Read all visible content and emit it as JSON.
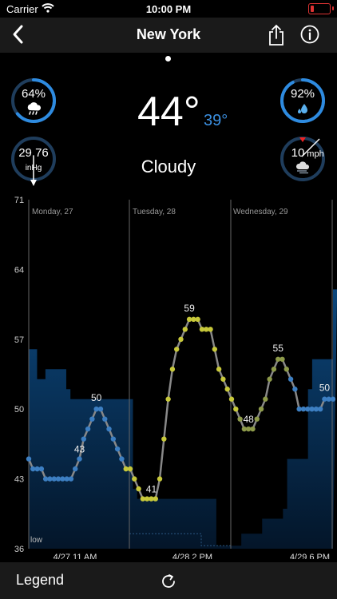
{
  "status_bar": {
    "carrier": "Carrier",
    "time": "10:00 PM"
  },
  "nav": {
    "title": "New York"
  },
  "current": {
    "temperature": "44°",
    "feels_like": "39°",
    "condition": "Cloudy",
    "precip_chance": "64%",
    "humidity": "92%",
    "pressure": "29.76",
    "pressure_unit": "inHg",
    "wind_speed": "10",
    "wind_unit": "mph"
  },
  "colors": {
    "accent": "#2e8be0",
    "ring_track": "#1f3d5c",
    "temp_line": "#888888"
  },
  "footer": {
    "legend_label": "Legend",
    "refresh_icon": "refresh-icon"
  },
  "chart_data": {
    "type": "line",
    "y_ticks": [
      "71",
      "64",
      "57",
      "50",
      "43",
      "36"
    ],
    "ylim": [
      36,
      71
    ],
    "day_labels": [
      "Monday, 27",
      "Tuesday, 28",
      "Wednesday, 29"
    ],
    "time_labels": [
      "4/27 11 AM",
      "4/28 2 PM",
      "4/29 6 PM"
    ],
    "low_label": "low",
    "point_labels": [
      "43",
      "50",
      "41",
      "59",
      "48",
      "55",
      "50"
    ],
    "series": [
      {
        "values": [
          45,
          44,
          44,
          44,
          43,
          43,
          43,
          43,
          43,
          43,
          43,
          44,
          45,
          47,
          48,
          49,
          50,
          50,
          49,
          48,
          47,
          46,
          45,
          44,
          44,
          43,
          42,
          41,
          41,
          41,
          41,
          43,
          47,
          51,
          54,
          56,
          57,
          58,
          59,
          59,
          59,
          58,
          58,
          58,
          56,
          54,
          53,
          52,
          51,
          50,
          49,
          48,
          48,
          48,
          49,
          50,
          51,
          53,
          54,
          55,
          55,
          54,
          53,
          52,
          50,
          50,
          50,
          50,
          50,
          50,
          51,
          51,
          51
        ]
      }
    ],
    "area_values": [
      56,
      56,
      53,
      53,
      54,
      54,
      54,
      54,
      54,
      52,
      51,
      51,
      51,
      51,
      51,
      51,
      51,
      51,
      51,
      51,
      51,
      51,
      51,
      51,
      51,
      42,
      41,
      41,
      41,
      41,
      41,
      41,
      41,
      41,
      41,
      41,
      41,
      41,
      41,
      41,
      41,
      41,
      41,
      41,
      41,
      36.3,
      36.3,
      36.3,
      36.3,
      36.3,
      36.3,
      37.5,
      37.5,
      37.5,
      37.5,
      37.5,
      39,
      39,
      39,
      39,
      39,
      40,
      45,
      45,
      45,
      45,
      45,
      52,
      55,
      55,
      55,
      55,
      55,
      62
    ]
  }
}
